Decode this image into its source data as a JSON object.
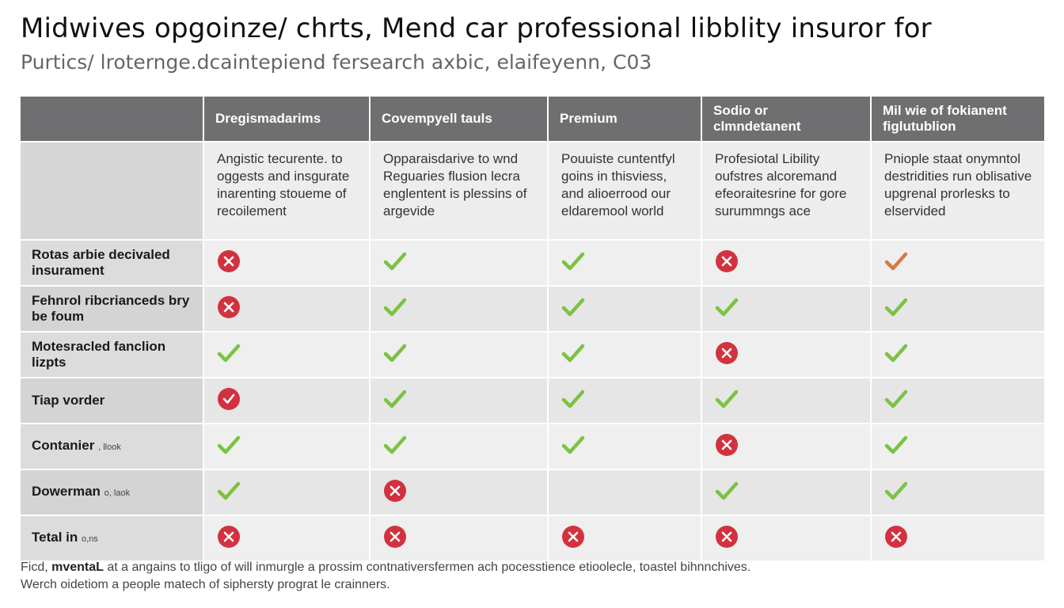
{
  "title": "Midwives opgoinze/ chrts, Mend car professional libblity insuror for",
  "subtitle": "Purtics/ lroternge.dcaintepiend fersearch axbic, elaifeyenn, C03",
  "columns": [
    "",
    "Dregismadarims",
    "Covempyell tauls",
    "Premium",
    "Sodio or clmndetanent",
    "Mil wie of fokianent figlutublion"
  ],
  "descriptions": [
    "Angistic tecurente. to oggests and insgurate inarenting stoueme of recoilement",
    "Opparaisdarive to wnd Reguaries flusion lecra englentent is plessins of argevide",
    "Pouuiste cuntentfyl goins in thisviess, and alioerrood our eldaremool world",
    "Profesiotal Libility oufstres alcoremand efeoraitesrine for gore surummngs ace",
    "Pniople staat onymntol destridities run oblisative upgrenal prorlesks to elservided"
  ],
  "rows": [
    {
      "label": "Rotas arbie decivaled insurament",
      "sublabel": "",
      "marks": [
        "cross",
        "check",
        "check",
        "cross",
        "check-orange"
      ]
    },
    {
      "label": "Fehnrol ribcrianceds bry be foum",
      "sublabel": "",
      "marks": [
        "cross",
        "check",
        "check",
        "check",
        "check"
      ]
    },
    {
      "label": "Motesracled fanclion lizpts",
      "sublabel": "",
      "marks": [
        "check",
        "check",
        "check",
        "cross",
        "check"
      ]
    },
    {
      "label": "Tiap vorder",
      "sublabel": "",
      "marks": [
        "check-circle",
        "check",
        "check",
        "check",
        "check"
      ]
    },
    {
      "label": "Contanier",
      "sublabel": ", llook",
      "marks": [
        "check",
        "check",
        "check",
        "cross",
        "check"
      ]
    },
    {
      "label": "Dowerman",
      "sublabel": "o, laok",
      "marks": [
        "check",
        "cross",
        "",
        "check",
        "check"
      ]
    },
    {
      "label": "Tetal in",
      "sublabel": "o,ns",
      "marks": [
        "cross",
        "cross",
        "cross",
        "cross",
        "cross"
      ]
    }
  ],
  "footnote": {
    "lead": "Ficd,",
    "bold": "mventaL",
    "line1": "at a angains to tligo of will inmurgle a prossim contnativersfermen ach pocesstience etioolecle, toastel bihnnchives.",
    "line2": "Werch oidetiom a people matech of siphersty prograt le crainners."
  },
  "colors": {
    "header_bg": "#6f6f71",
    "check_green": "#7cc242",
    "cross_red": "#d2323f",
    "check_orange": "#d97a45"
  }
}
